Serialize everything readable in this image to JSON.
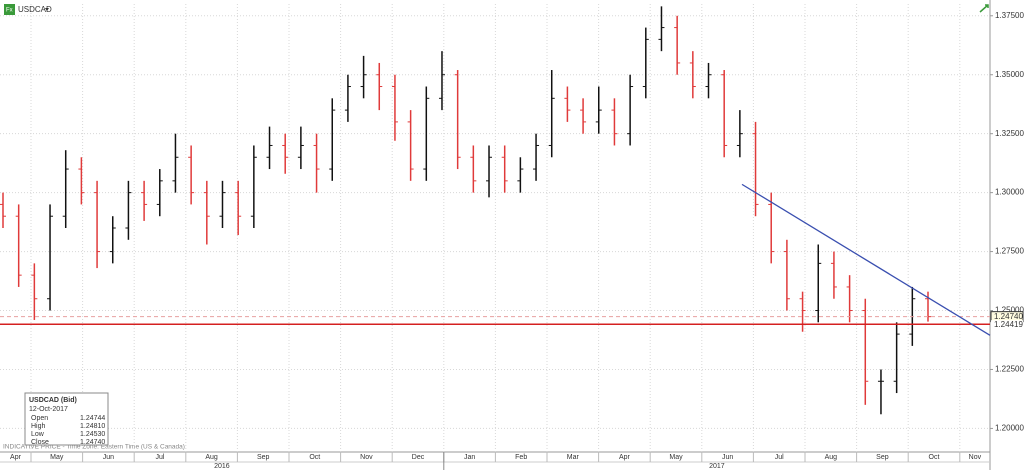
{
  "chart_data": {
    "type": "ohlc",
    "symbol": "USDCAD",
    "footer": "INDICATIVE PRICE - Time Zone: Eastern Time (US & Canada)",
    "up_color": "#111111",
    "down_color": "#e03a3a",
    "ylim": [
      1.19,
      1.38
    ],
    "yticks": [
      {
        "value": 1.2,
        "label": "1.20000"
      },
      {
        "value": 1.225,
        "label": "1.22500"
      },
      {
        "value": 1.25,
        "label": "1.25000"
      },
      {
        "value": 1.275,
        "label": "1.27500"
      },
      {
        "value": 1.3,
        "label": "1.30000"
      },
      {
        "value": 1.325,
        "label": "1.32500"
      },
      {
        "value": 1.35,
        "label": "1.35000"
      },
      {
        "value": 1.375,
        "label": "1.37500"
      }
    ],
    "months": [
      "Apr",
      "May",
      "Jun",
      "Jul",
      "Aug",
      "Sep",
      "Oct",
      "Nov",
      "Dec",
      "Jan",
      "Feb",
      "Mar",
      "Apr",
      "May",
      "Jun",
      "Jul",
      "Aug",
      "Sep",
      "Oct",
      "Nov"
    ],
    "years": [
      "2016",
      "2017"
    ],
    "open": [
      1.295,
      1.29,
      1.265,
      1.255,
      1.29,
      1.31,
      1.3,
      1.275,
      1.285,
      1.3,
      1.295,
      1.305,
      1.315,
      1.3,
      1.29,
      1.3,
      1.29,
      1.315,
      1.32,
      1.315,
      1.32,
      1.31,
      1.335,
      1.345,
      1.35,
      1.345,
      1.33,
      1.31,
      1.34,
      1.35,
      1.315,
      1.305,
      1.315,
      1.305,
      1.31,
      1.32,
      1.34,
      1.335,
      1.33,
      1.335,
      1.325,
      1.345,
      1.365,
      1.37,
      1.355,
      1.345,
      1.35,
      1.32,
      1.325,
      1.295,
      1.275,
      1.255,
      1.25,
      1.27,
      1.26,
      1.25,
      1.22,
      1.22,
      1.24,
      1.255
    ],
    "high": [
      1.3,
      1.295,
      1.27,
      1.295,
      1.318,
      1.315,
      1.305,
      1.29,
      1.305,
      1.305,
      1.31,
      1.325,
      1.32,
      1.305,
      1.305,
      1.305,
      1.32,
      1.328,
      1.325,
      1.328,
      1.325,
      1.34,
      1.35,
      1.358,
      1.355,
      1.35,
      1.335,
      1.345,
      1.36,
      1.352,
      1.32,
      1.32,
      1.32,
      1.315,
      1.325,
      1.352,
      1.345,
      1.34,
      1.345,
      1.34,
      1.35,
      1.37,
      1.379,
      1.375,
      1.36,
      1.355,
      1.352,
      1.335,
      1.33,
      1.3,
      1.28,
      1.258,
      1.278,
      1.275,
      1.265,
      1.255,
      1.225,
      1.245,
      1.26,
      1.258
    ],
    "low": [
      1.285,
      1.26,
      1.246,
      1.25,
      1.285,
      1.295,
      1.268,
      1.27,
      1.28,
      1.288,
      1.29,
      1.3,
      1.295,
      1.278,
      1.285,
      1.282,
      1.285,
      1.31,
      1.308,
      1.31,
      1.3,
      1.305,
      1.33,
      1.34,
      1.335,
      1.322,
      1.305,
      1.305,
      1.335,
      1.31,
      1.3,
      1.298,
      1.3,
      1.3,
      1.305,
      1.315,
      1.33,
      1.325,
      1.325,
      1.32,
      1.32,
      1.34,
      1.36,
      1.35,
      1.34,
      1.34,
      1.315,
      1.315,
      1.29,
      1.27,
      1.25,
      1.241,
      1.245,
      1.255,
      1.245,
      1.21,
      1.206,
      1.215,
      1.235,
      1.2453
    ],
    "close": [
      1.29,
      1.265,
      1.255,
      1.29,
      1.31,
      1.3,
      1.275,
      1.285,
      1.3,
      1.295,
      1.305,
      1.315,
      1.3,
      1.29,
      1.3,
      1.29,
      1.315,
      1.32,
      1.315,
      1.32,
      1.31,
      1.335,
      1.345,
      1.35,
      1.345,
      1.33,
      1.31,
      1.34,
      1.35,
      1.315,
      1.305,
      1.315,
      1.305,
      1.31,
      1.32,
      1.34,
      1.335,
      1.33,
      1.335,
      1.325,
      1.345,
      1.365,
      1.37,
      1.355,
      1.345,
      1.35,
      1.32,
      1.325,
      1.295,
      1.275,
      1.255,
      1.25,
      1.27,
      1.26,
      1.25,
      1.22,
      1.22,
      1.24,
      1.255,
      1.2474
    ],
    "trendline": {
      "color": "#3a4fb0",
      "y_start": 1.3035,
      "y_end": 1.2395
    },
    "support": {
      "value": 1.24419,
      "label": "1.24419",
      "color": "#d42020"
    },
    "last_price": {
      "value": 1.2474,
      "label": "1.24740"
    },
    "info_box": {
      "title": "USDCAD (Bid)",
      "date": "12-Oct-2017",
      "rows": [
        [
          "Open",
          "1.24744"
        ],
        [
          "High",
          "1.24810"
        ],
        [
          "Low",
          "1.24530"
        ],
        [
          "Close",
          "1.24740"
        ]
      ]
    }
  }
}
